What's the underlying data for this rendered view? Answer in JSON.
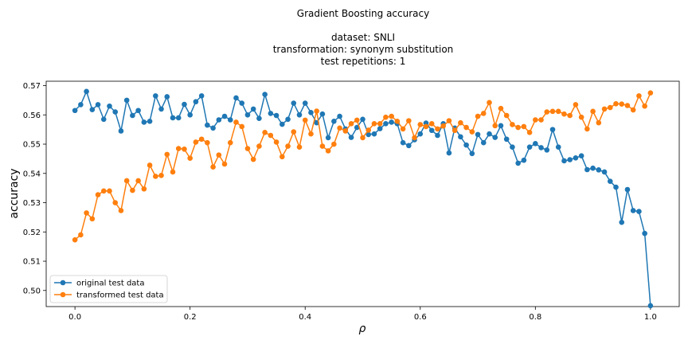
{
  "chart_data": {
    "type": "line",
    "title": "Gradient Boosting accuracy",
    "subtitle_lines": [
      "dataset: SNLI",
      "transformation: synonym substitution",
      "test repetitions: 1"
    ],
    "xlabel": "ρ",
    "ylabel": "accuracy",
    "xlim": [
      -0.05,
      1.05
    ],
    "ylim": [
      0.4945,
      0.5715
    ],
    "xticks": [
      0.0,
      0.2,
      0.4,
      0.6,
      0.8,
      1.0
    ],
    "xtick_labels": [
      "0.0",
      "0.2",
      "0.4",
      "0.6",
      "0.8",
      "1.0"
    ],
    "yticks": [
      0.5,
      0.51,
      0.52,
      0.53,
      0.54,
      0.55,
      0.56,
      0.57
    ],
    "ytick_labels": [
      "0.50",
      "0.51",
      "0.52",
      "0.53",
      "0.54",
      "0.55",
      "0.56",
      "0.57"
    ],
    "grid": false,
    "legend_position": "bottom-left",
    "x": [
      0.0,
      0.01,
      0.02,
      0.03,
      0.04,
      0.05,
      0.06,
      0.07,
      0.08,
      0.09,
      0.1,
      0.11,
      0.12,
      0.13,
      0.14,
      0.15,
      0.16,
      0.17,
      0.18,
      0.19,
      0.2,
      0.21,
      0.22,
      0.23,
      0.24,
      0.25,
      0.26,
      0.27,
      0.28,
      0.29,
      0.3,
      0.31,
      0.32,
      0.33,
      0.34,
      0.35,
      0.36,
      0.37,
      0.38,
      0.39,
      0.4,
      0.41,
      0.42,
      0.43,
      0.44,
      0.45,
      0.46,
      0.47,
      0.48,
      0.49,
      0.5,
      0.51,
      0.52,
      0.53,
      0.54,
      0.55,
      0.56,
      0.57,
      0.58,
      0.59,
      0.6,
      0.61,
      0.62,
      0.63,
      0.64,
      0.65,
      0.66,
      0.67,
      0.68,
      0.69,
      0.7,
      0.71,
      0.72,
      0.73,
      0.74,
      0.75,
      0.76,
      0.77,
      0.78,
      0.79,
      0.8,
      0.81,
      0.82,
      0.83,
      0.84,
      0.85,
      0.86,
      0.87,
      0.88,
      0.89,
      0.9,
      0.91,
      0.92,
      0.93,
      0.94,
      0.95,
      0.96,
      0.97,
      0.98,
      0.99,
      1.0
    ],
    "series": [
      {
        "name": "original test data",
        "color": "#1f77b4",
        "values": [
          0.5615,
          0.5635,
          0.568,
          0.5618,
          0.5635,
          0.5585,
          0.563,
          0.561,
          0.5545,
          0.565,
          0.5598,
          0.5615,
          0.5575,
          0.5578,
          0.5665,
          0.562,
          0.5662,
          0.559,
          0.559,
          0.5636,
          0.56,
          0.5645,
          0.5665,
          0.5565,
          0.5555,
          0.5583,
          0.5595,
          0.5583,
          0.5658,
          0.564,
          0.56,
          0.562,
          0.5588,
          0.567,
          0.5605,
          0.5598,
          0.5568,
          0.5585,
          0.564,
          0.56,
          0.564,
          0.5608,
          0.5573,
          0.5603,
          0.5522,
          0.5578,
          0.5595,
          0.5552,
          0.5523,
          0.5557,
          0.5585,
          0.5533,
          0.5535,
          0.5553,
          0.557,
          0.5575,
          0.557,
          0.5505,
          0.5495,
          0.5515,
          0.5535,
          0.5572,
          0.5547,
          0.553,
          0.557,
          0.547,
          0.5555,
          0.5525,
          0.5497,
          0.5468,
          0.5533,
          0.5505,
          0.5535,
          0.5523,
          0.5563,
          0.5517,
          0.549,
          0.5435,
          0.5445,
          0.549,
          0.5502,
          0.5488,
          0.548,
          0.555,
          0.549,
          0.5443,
          0.5447,
          0.5453,
          0.546,
          0.5413,
          0.5418,
          0.5412,
          0.5405,
          0.5373,
          0.5353,
          0.5233,
          0.5345,
          0.5273,
          0.527,
          0.5195,
          0.4948
        ]
      },
      {
        "name": "transformed test data",
        "color": "#ff7f0e",
        "values": [
          0.5173,
          0.519,
          0.5265,
          0.5245,
          0.5327,
          0.534,
          0.534,
          0.53,
          0.5273,
          0.5375,
          0.5342,
          0.5375,
          0.5347,
          0.5428,
          0.539,
          0.5393,
          0.5465,
          0.5405,
          0.5485,
          0.5483,
          0.5452,
          0.5507,
          0.5517,
          0.5505,
          0.5422,
          0.5463,
          0.5432,
          0.5505,
          0.5575,
          0.556,
          0.5485,
          0.5448,
          0.5493,
          0.554,
          0.553,
          0.5507,
          0.5457,
          0.5493,
          0.5542,
          0.549,
          0.5582,
          0.5535,
          0.5613,
          0.5493,
          0.5477,
          0.55,
          0.5555,
          0.5545,
          0.557,
          0.5582,
          0.5522,
          0.5548,
          0.557,
          0.557,
          0.5592,
          0.5595,
          0.5578,
          0.5552,
          0.558,
          0.5522,
          0.5567,
          0.556,
          0.557,
          0.5552,
          0.5562,
          0.558,
          0.5547,
          0.5573,
          0.5557,
          0.5542,
          0.5595,
          0.5605,
          0.5642,
          0.5563,
          0.5622,
          0.5598,
          0.5567,
          0.5557,
          0.556,
          0.554,
          0.5583,
          0.5583,
          0.561,
          0.5612,
          0.5612,
          0.5603,
          0.5598,
          0.5635,
          0.5592,
          0.5552,
          0.5612,
          0.5573,
          0.562,
          0.5625,
          0.5638,
          0.5637,
          0.5632,
          0.5617,
          0.5665,
          0.563,
          0.5675
        ]
      }
    ]
  }
}
